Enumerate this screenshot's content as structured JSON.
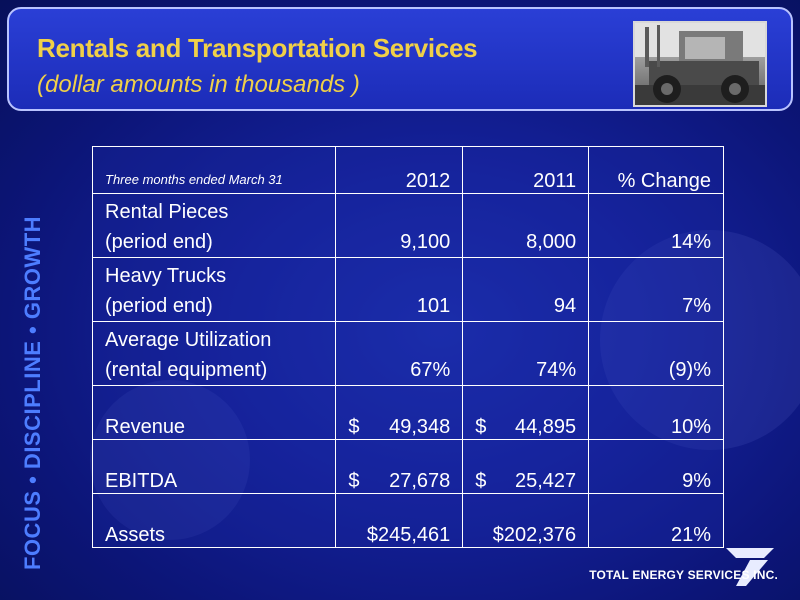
{
  "header": {
    "title": "Rentals and Transportation Services",
    "subtitle": "(dollar amounts in thousands )"
  },
  "side_text": "FOCUS • DISCIPLINE • GROWTH",
  "table": {
    "period_label": "Three months ended March 31",
    "columns": [
      "2012",
      "2011",
      "% Change"
    ],
    "rows": [
      {
        "label_line1": "Rental Pieces",
        "label_line2": "(period end)",
        "v2012": "9,100",
        "v2011": "8,000",
        "change": "14%"
      },
      {
        "label_line1": "Heavy Trucks",
        "label_line2": "(period end)",
        "v2012": "101",
        "v2011": "94",
        "change": "7%"
      },
      {
        "label_line1": "Average Utilization",
        "label_line2": "(rental equipment)",
        "v2012": "67%",
        "v2011": "74%",
        "change": "(9)%"
      },
      {
        "label": "Revenue",
        "v2012_sym": "$",
        "v2012": "49,348",
        "v2011_sym": "$",
        "v2011": "44,895",
        "change": "10%"
      },
      {
        "label": "EBITDA",
        "v2012_sym": "$",
        "v2012": "27,678",
        "v2011_sym": "$",
        "v2011": "25,427",
        "change": "9%"
      },
      {
        "label": "Assets",
        "v2012_sym": "$",
        "v2012": "245,461",
        "v2011_sym": "$",
        "v2011": "202,376",
        "change": "21%"
      }
    ]
  },
  "logo": {
    "text": "TOTAL ENERGY SERVICES INC."
  },
  "colors": {
    "title": "#f0d048",
    "side_text": "#4d7dff",
    "background": "#14219a"
  }
}
